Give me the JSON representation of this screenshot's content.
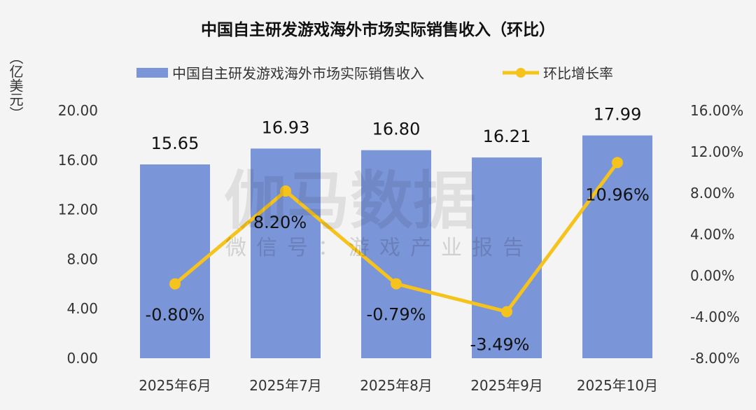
{
  "chart_data": {
    "type": "bar+line",
    "title": "中国自主研发游戏海外市场实际销售收入（环比）",
    "ylabel": "（亿美元）",
    "categories": [
      "2025年6月",
      "2025年7月",
      "2025年8月",
      "2025年9月",
      "2025年10月"
    ],
    "series": [
      {
        "name": "中国自主研发游戏海外市场实际销售收入",
        "type": "bar",
        "axis": "left",
        "color": "#7b96d8",
        "values": [
          15.65,
          16.93,
          16.8,
          16.21,
          17.99
        ],
        "labels": [
          "15.65",
          "16.93",
          "16.80",
          "16.21",
          "17.99"
        ]
      },
      {
        "name": "环比增长率",
        "type": "line",
        "axis": "right",
        "color": "#f6c21c",
        "values": [
          -0.8,
          8.2,
          -0.79,
          -3.49,
          10.96
        ],
        "labels": [
          "-0.80%",
          "8.20%",
          "-0.79%",
          "-3.49%",
          "10.96%"
        ]
      }
    ],
    "left_axis": {
      "range": [
        0,
        20
      ],
      "ticks": [
        "0.00",
        "4.00",
        "8.00",
        "12.00",
        "16.00",
        "20.00"
      ]
    },
    "right_axis": {
      "range": [
        -8,
        16
      ],
      "ticks": [
        "-8.00%",
        "-4.00%",
        "0.00%",
        "4.00%",
        "8.00%",
        "12.00%",
        "16.00%"
      ]
    },
    "legend": "top",
    "grid": false
  },
  "watermark": {
    "main": "伽马数据",
    "sub": "微信号：游戏产业报告"
  }
}
